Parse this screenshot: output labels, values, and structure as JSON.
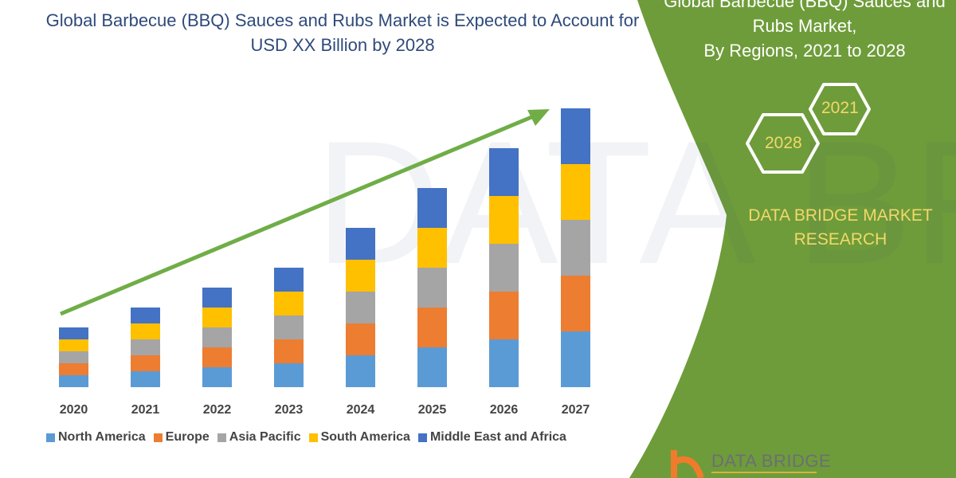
{
  "title": "Global Barbecue (BBQ) Sauces and Rubs Market is Expected to Account for USD XX Billion by 2028",
  "side_panel": {
    "title_line1": "Global Barbecue (BBQ) Sauces and",
    "title_line2": "Rubs Market,",
    "title_line3": "By Regions, 2021 to 2028",
    "hex_1": "2021",
    "hex_2": "2028",
    "brand_line1": "DATA BRIDGE MARKET",
    "brand_line2": "RESEARCH",
    "logo_text": "DATA BRIDGE",
    "color": "#6e9c3a"
  },
  "chart_data": {
    "type": "bar",
    "stacked": true,
    "title": "Global Barbecue (BBQ) Sauces and Rubs Market is Expected to Account for USD XX Billion by 2028",
    "xlabel": "",
    "ylabel": "",
    "y_axis_visible": false,
    "grid": false,
    "legend_position": "bottom",
    "trend_arrow": true,
    "categories": [
      "2020",
      "2021",
      "2022",
      "2023",
      "2024",
      "2025",
      "2026",
      "2027"
    ],
    "series": [
      {
        "name": "North America",
        "color": "#5b9bd5",
        "values": [
          15,
          20,
          25,
          30,
          40,
          50,
          60,
          70
        ]
      },
      {
        "name": "Europe",
        "color": "#ed7d31",
        "values": [
          15,
          20,
          25,
          30,
          40,
          50,
          60,
          70
        ]
      },
      {
        "name": "Asia Pacific",
        "color": "#a5a5a5",
        "values": [
          15,
          20,
          25,
          30,
          40,
          50,
          60,
          70
        ]
      },
      {
        "name": "South America",
        "color": "#ffc000",
        "values": [
          15,
          20,
          25,
          30,
          40,
          50,
          60,
          70
        ]
      },
      {
        "name": "Middle East and Africa",
        "color": "#4472c4",
        "values": [
          15,
          20,
          25,
          30,
          40,
          50,
          60,
          70
        ]
      }
    ]
  }
}
